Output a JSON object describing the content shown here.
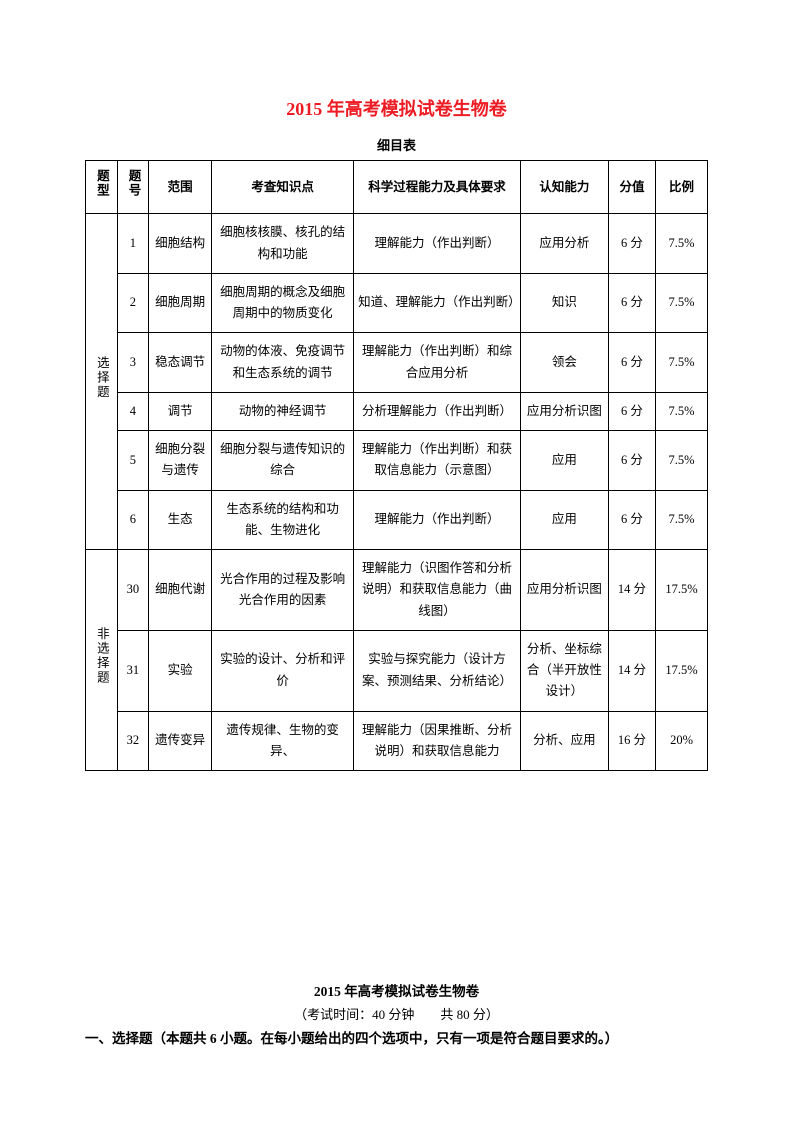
{
  "title": "2015 年高考模拟试卷生物卷",
  "subtitle": "细目表",
  "headers": {
    "type": "题型",
    "num": "题号",
    "scope": "范围",
    "knowledge": "考查知识点",
    "ability": "科学过程能力及具体要求",
    "cognition": "认知能力",
    "score": "分值",
    "ratio": "比例"
  },
  "groups": [
    {
      "type": "选择题",
      "rows": [
        {
          "num": "1",
          "scope": "细胞结构",
          "knowledge": "细胞核核膜、核孔的结构和功能",
          "ability": "理解能力（作出判断）",
          "cognition": "应用分析",
          "score": "6 分",
          "ratio": "7.5%"
        },
        {
          "num": "2",
          "scope": "细胞周期",
          "knowledge": "细胞周期的概念及细胞周期中的物质变化",
          "ability": "知道、理解能力（作出判断）",
          "cognition": "知识",
          "score": "6 分",
          "ratio": "7.5%"
        },
        {
          "num": "3",
          "scope": "稳态调节",
          "knowledge": "动物的体液、免疫调节和生态系统的调节",
          "ability": "理解能力（作出判断）和综合应用分析",
          "cognition": "领会",
          "score": "6 分",
          "ratio": "7.5%"
        },
        {
          "num": "4",
          "scope": "调节",
          "knowledge": "动物的神经调节",
          "ability": "分析理解能力（作出判断）",
          "cognition": "应用分析识图",
          "score": "6 分",
          "ratio": "7.5%"
        },
        {
          "num": "5",
          "scope": "细胞分裂与遗传",
          "knowledge": "细胞分裂与遗传知识的综合",
          "ability": "理解能力（作出判断）和获取信息能力（示意图）",
          "cognition": "应用",
          "score": "6 分",
          "ratio": "7.5%"
        },
        {
          "num": "6",
          "scope": "生态",
          "knowledge": "生态系统的结构和功能、生物进化",
          "ability": "理解能力（作出判断）",
          "cognition": "应用",
          "score": "6 分",
          "ratio": "7.5%"
        }
      ]
    },
    {
      "type": "非选择题",
      "rows": [
        {
          "num": "30",
          "scope": "细胞代谢",
          "knowledge": "光合作用的过程及影响光合作用的因素",
          "ability": "理解能力（识图作答和分析说明）和获取信息能力（曲线图）",
          "cognition": "应用分析识图",
          "score": "14 分",
          "ratio": "17.5%"
        },
        {
          "num": "31",
          "scope": "实验",
          "knowledge": "实验的设计、分析和评价",
          "ability": "实验与探究能力（设计方案、预测结果、分析结论）",
          "cognition": "分析、坐标综合（半开放性设计）",
          "score": "14 分",
          "ratio": "17.5%"
        },
        {
          "num": "32",
          "scope": "遗传变异",
          "knowledge": "遗传规律、生物的变异、",
          "ability": "理解能力（因果推断、分析说明）和获取信息能力",
          "cognition": "分析、应用",
          "score": "16 分",
          "ratio": "20%"
        }
      ]
    }
  ],
  "footer": {
    "title": "2015 年高考模拟试卷生物卷",
    "info": "（考试时间：40 分钟　　共 80 分）",
    "heading": "一、选择题（本题共 6 小题。在每小题给出的四个选项中，只有一项是符合题目要求的。）"
  },
  "styling": {
    "title_color": "#ed1c24",
    "border_color": "#000000",
    "background_color": "#ffffff",
    "text_color": "#000000",
    "title_fontsize": 18,
    "body_fontsize": 13,
    "cell_fontsize": 12.5
  }
}
